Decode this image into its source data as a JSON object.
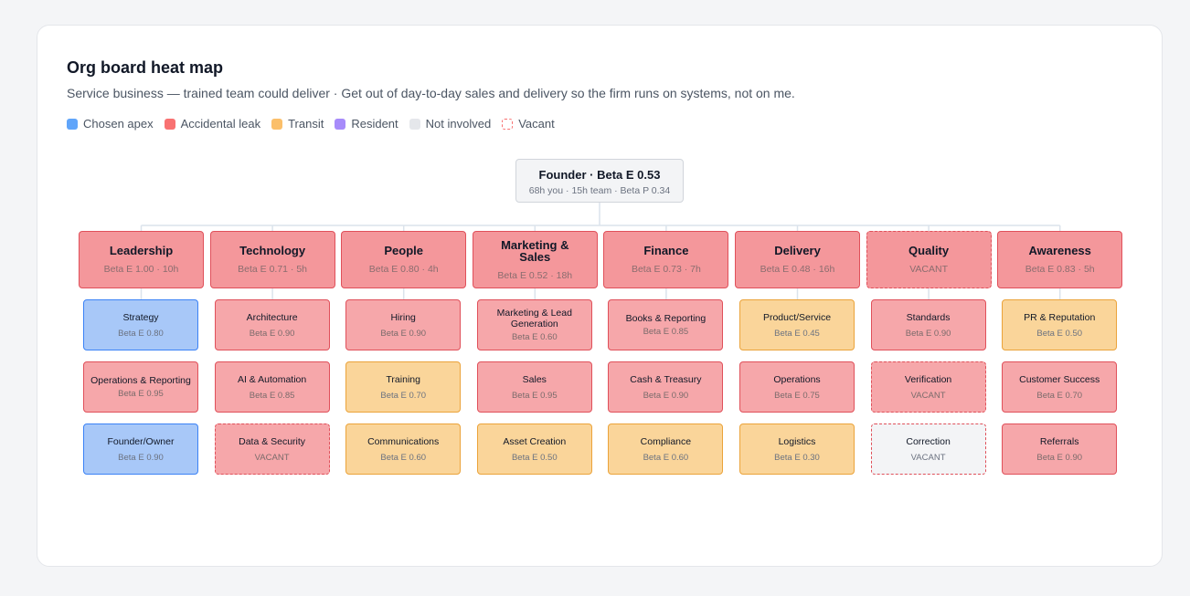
{
  "title": "Org board heat map",
  "subtitle": "Service business — trained team could deliver · Get out of day-to-day sales and delivery so the firm runs on systems, not on me.",
  "legend": [
    {
      "label": "Chosen apex",
      "type": "apex"
    },
    {
      "label": "Accidental leak",
      "type": "leak"
    },
    {
      "label": "Transit",
      "type": "transit"
    },
    {
      "label": "Resident",
      "type": "resident"
    },
    {
      "label": "Not involved",
      "type": "none"
    },
    {
      "label": "Vacant",
      "type": "vacant"
    }
  ],
  "styles": {
    "apex": {
      "bg": "#a8c8f8",
      "border": "#3b82f6",
      "text": "#6b7280"
    },
    "leak": {
      "bg": "#f6a7aa",
      "border": "#e0505a",
      "text": "#7a6b6b"
    },
    "leak_head": {
      "bg": "#f4979b",
      "border": "#e0505a",
      "text": "#8a6d6f"
    },
    "transit": {
      "bg": "#fad59a",
      "border": "#eba33a",
      "text": "#6b7280"
    },
    "resident": {
      "bg": "#c9b8f6",
      "border": "#8b5cf6",
      "text": "#6b7280"
    },
    "none": {
      "bg": "#f3f4f6",
      "border": "#e0505a",
      "text": "#6b7280"
    },
    "legend_swatch": {
      "apex": "#60a5fa",
      "leak": "#f87171",
      "transit": "#fbbf6a",
      "resident": "#a78bfa",
      "none": "#e5e7eb",
      "vacant": "#ffffff"
    }
  },
  "founder": {
    "name": "Founder · Beta E 0.53",
    "sub": "68h you · 15h team · Beta P 0.34"
  },
  "columns": [
    {
      "name": "Leadership",
      "sub": "Beta E 1.00 · 10h",
      "vacant": false,
      "roles": [
        {
          "name": "Strategy",
          "sub": "Beta E 0.80",
          "type": "apex",
          "vacant": false
        },
        {
          "name": "Operations & Reporting",
          "sub": "Beta E 0.95",
          "type": "leak",
          "vacant": false
        },
        {
          "name": "Founder/Owner",
          "sub": "Beta E 0.90",
          "type": "apex",
          "vacant": false
        }
      ]
    },
    {
      "name": "Technology",
      "sub": "Beta E 0.71 · 5h",
      "vacant": false,
      "roles": [
        {
          "name": "Architecture",
          "sub": "Beta E 0.90",
          "type": "leak",
          "vacant": false
        },
        {
          "name": "AI & Automation",
          "sub": "Beta E 0.85",
          "type": "leak",
          "vacant": false
        },
        {
          "name": "Data & Security",
          "sub": "VACANT",
          "type": "leak",
          "vacant": true
        }
      ]
    },
    {
      "name": "People",
      "sub": "Beta E 0.80 · 4h",
      "vacant": false,
      "roles": [
        {
          "name": "Hiring",
          "sub": "Beta E 0.90",
          "type": "leak",
          "vacant": false
        },
        {
          "name": "Training",
          "sub": "Beta E 0.70",
          "type": "transit",
          "vacant": false
        },
        {
          "name": "Communications",
          "sub": "Beta E 0.60",
          "type": "transit",
          "vacant": false
        }
      ]
    },
    {
      "name": "Marketing & Sales",
      "sub": "Beta E 0.52 · 18h",
      "vacant": false,
      "roles": [
        {
          "name": "Marketing & Lead Generation",
          "sub": "Beta E 0.60",
          "type": "leak",
          "vacant": false
        },
        {
          "name": "Sales",
          "sub": "Beta E 0.95",
          "type": "leak",
          "vacant": false
        },
        {
          "name": "Asset Creation",
          "sub": "Beta E 0.50",
          "type": "transit",
          "vacant": false
        }
      ]
    },
    {
      "name": "Finance",
      "sub": "Beta E 0.73 · 7h",
      "vacant": false,
      "roles": [
        {
          "name": "Books & Reporting",
          "sub": "Beta E 0.85",
          "type": "leak",
          "vacant": false
        },
        {
          "name": "Cash & Treasury",
          "sub": "Beta E 0.90",
          "type": "leak",
          "vacant": false
        },
        {
          "name": "Compliance",
          "sub": "Beta E 0.60",
          "type": "transit",
          "vacant": false
        }
      ]
    },
    {
      "name": "Delivery",
      "sub": "Beta E 0.48 · 16h",
      "vacant": false,
      "roles": [
        {
          "name": "Product/Service",
          "sub": "Beta E 0.45",
          "type": "transit",
          "vacant": false
        },
        {
          "name": "Operations",
          "sub": "Beta E 0.75",
          "type": "leak",
          "vacant": false
        },
        {
          "name": "Logistics",
          "sub": "Beta E 0.30",
          "type": "transit",
          "vacant": false
        }
      ]
    },
    {
      "name": "Quality",
      "sub": "VACANT",
      "vacant": true,
      "roles": [
        {
          "name": "Standards",
          "sub": "Beta E 0.90",
          "type": "leak",
          "vacant": false
        },
        {
          "name": "Verification",
          "sub": "VACANT",
          "type": "leak",
          "vacant": true
        },
        {
          "name": "Correction",
          "sub": "VACANT",
          "type": "none",
          "vacant": true
        }
      ]
    },
    {
      "name": "Awareness",
      "sub": "Beta E 0.83 · 5h",
      "vacant": false,
      "roles": [
        {
          "name": "PR & Reputation",
          "sub": "Beta E 0.50",
          "type": "transit",
          "vacant": false
        },
        {
          "name": "Customer Success",
          "sub": "Beta E 0.70",
          "type": "leak",
          "vacant": false
        },
        {
          "name": "Referrals",
          "sub": "Beta E 0.90",
          "type": "leak",
          "vacant": false
        }
      ]
    }
  ]
}
